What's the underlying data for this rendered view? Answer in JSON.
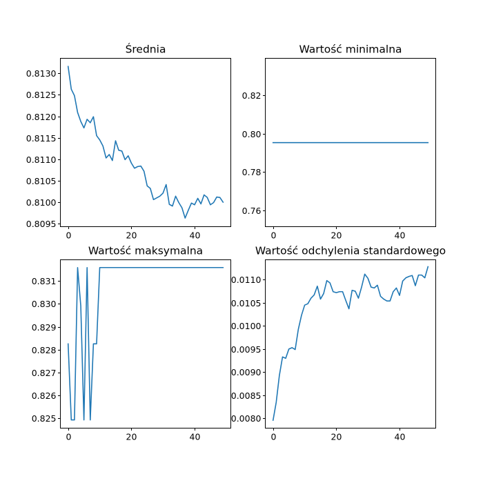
{
  "colors": {
    "line": "#1f77b4"
  },
  "chart_data": [
    {
      "type": "line",
      "title": "Średnia",
      "xlabel": "",
      "ylabel": "",
      "xlim": [
        -2.45,
        51.45
      ],
      "ylim": [
        0.80943,
        0.81335
      ],
      "xticks": [
        0,
        20,
        40
      ],
      "xtick_labels": [
        "0",
        "20",
        "40"
      ],
      "yticks": [
        0.8095,
        0.81,
        0.8105,
        0.811,
        0.8115,
        0.812,
        0.8125,
        0.813
      ],
      "ytick_labels": [
        "0.8095",
        "0.8100",
        "0.8105",
        "0.8110",
        "0.8115",
        "0.8120",
        "0.8125",
        "0.8130"
      ],
      "grid": false,
      "series": [
        {
          "x": [
            0,
            1,
            2,
            3,
            4,
            5,
            6,
            7,
            8,
            9,
            10,
            11,
            12,
            13,
            14,
            15,
            16,
            17,
            18,
            19,
            20,
            21,
            22,
            23,
            24,
            25,
            26,
            27,
            28,
            29,
            30,
            31,
            32,
            33,
            34,
            35,
            36,
            37,
            38,
            39,
            40,
            41,
            42,
            43,
            44,
            45,
            46,
            47,
            48,
            49
          ],
          "y": [
            0.81316,
            0.81263,
            0.81248,
            0.81209,
            0.81188,
            0.81173,
            0.81193,
            0.81185,
            0.81199,
            0.81155,
            0.81145,
            0.81131,
            0.81103,
            0.81111,
            0.81097,
            0.81143,
            0.81121,
            0.81119,
            0.81099,
            0.81108,
            0.81091,
            0.81079,
            0.81083,
            0.81084,
            0.81072,
            0.81038,
            0.81032,
            0.81006,
            0.8101,
            0.81014,
            0.81021,
            0.81041,
            0.80995,
            0.80991,
            0.81014,
            0.80999,
            0.80987,
            0.80963,
            0.80981,
            0.80998,
            0.80994,
            0.81009,
            0.80996,
            0.81017,
            0.81011,
            0.80994,
            0.80999,
            0.81012,
            0.81011,
            0.81
          ]
        }
      ]
    },
    {
      "type": "line",
      "title": "Wartość minimalna",
      "xlabel": "",
      "ylabel": "",
      "xlim": [
        -2.45,
        51.45
      ],
      "ylim": [
        0.7515,
        0.8394
      ],
      "xticks": [
        0,
        20,
        40
      ],
      "xtick_labels": [
        "0",
        "20",
        "40"
      ],
      "yticks": [
        0.76,
        0.78,
        0.8,
        0.82
      ],
      "ytick_labels": [
        "0.76",
        "0.78",
        "0.80",
        "0.82"
      ],
      "grid": false,
      "series": [
        {
          "x": [
            0,
            49
          ],
          "y": [
            0.7954,
            0.7954
          ]
        }
      ]
    },
    {
      "type": "line",
      "title": "Wartość maksymalna",
      "xlabel": "",
      "ylabel": "",
      "xlim": [
        -2.45,
        51.45
      ],
      "ylim": [
        0.82456,
        0.83193
      ],
      "xticks": [
        0,
        20,
        40
      ],
      "xtick_labels": [
        "0",
        "20",
        "40"
      ],
      "yticks": [
        0.825,
        0.826,
        0.827,
        0.828,
        0.829,
        0.83,
        0.831
      ],
      "ytick_labels": [
        "0.825",
        "0.826",
        "0.827",
        "0.828",
        "0.829",
        "0.830",
        "0.831"
      ],
      "grid": false,
      "series": [
        {
          "x": [
            0,
            1,
            2,
            3,
            4,
            5,
            6,
            7,
            8,
            9,
            10,
            11,
            12,
            13,
            14,
            15,
            16,
            17,
            18,
            19,
            20,
            21,
            22,
            23,
            24,
            25,
            26,
            27,
            28,
            29,
            30,
            31,
            32,
            33,
            34,
            35,
            36,
            37,
            38,
            39,
            40,
            41,
            42,
            43,
            44,
            45,
            46,
            47,
            48,
            49
          ],
          "y": [
            0.82825,
            0.82492,
            0.82492,
            0.83159,
            0.82992,
            0.82492,
            0.83159,
            0.82492,
            0.82825,
            0.82825,
            0.83159,
            0.83159,
            0.83159,
            0.83159,
            0.83159,
            0.83159,
            0.83159,
            0.83159,
            0.83159,
            0.83159,
            0.83159,
            0.83159,
            0.83159,
            0.83159,
            0.83159,
            0.83159,
            0.83159,
            0.83159,
            0.83159,
            0.83159,
            0.83159,
            0.83159,
            0.83159,
            0.83159,
            0.83159,
            0.83159,
            0.83159,
            0.83159,
            0.83159,
            0.83159,
            0.83159,
            0.83159,
            0.83159,
            0.83159,
            0.83159,
            0.83159,
            0.83159,
            0.83159,
            0.83159,
            0.83159
          ]
        }
      ]
    },
    {
      "type": "line",
      "title": "Wartość odchylenia standardowego",
      "xlabel": "",
      "ylabel": "",
      "xlim": [
        -2.45,
        51.45
      ],
      "ylim": [
        0.00779,
        0.01143
      ],
      "xticks": [
        0,
        20,
        40
      ],
      "xtick_labels": [
        "0",
        "20",
        "40"
      ],
      "yticks": [
        0.008,
        0.0085,
        0.009,
        0.0095,
        0.01,
        0.0105,
        0.011
      ],
      "ytick_labels": [
        "0.0080",
        "0.0085",
        "0.0090",
        "0.0095",
        "0.0100",
        "0.0105",
        "0.0110"
      ],
      "grid": false,
      "series": [
        {
          "x": [
            0,
            1,
            2,
            3,
            4,
            5,
            6,
            7,
            8,
            9,
            10,
            11,
            12,
            13,
            14,
            15,
            16,
            17,
            18,
            19,
            20,
            21,
            22,
            23,
            24,
            25,
            26,
            27,
            28,
            29,
            30,
            31,
            32,
            33,
            34,
            35,
            36,
            37,
            38,
            39,
            40,
            41,
            42,
            43,
            44,
            45,
            46,
            47,
            48,
            49
          ],
          "y": [
            0.00796,
            0.00835,
            0.00893,
            0.00933,
            0.0093,
            0.0095,
            0.00953,
            0.00949,
            0.00993,
            0.01023,
            0.01045,
            0.01048,
            0.0106,
            0.01067,
            0.01086,
            0.01058,
            0.0107,
            0.01098,
            0.01093,
            0.01074,
            0.01072,
            0.01074,
            0.01074,
            0.01055,
            0.01037,
            0.01077,
            0.01075,
            0.0106,
            0.01084,
            0.01112,
            0.01103,
            0.01084,
            0.01082,
            0.01088,
            0.01064,
            0.01058,
            0.01054,
            0.01054,
            0.01074,
            0.01082,
            0.01066,
            0.01097,
            0.01104,
            0.01107,
            0.01109,
            0.01087,
            0.0111,
            0.0111,
            0.01104,
            0.01128
          ]
        }
      ]
    }
  ]
}
